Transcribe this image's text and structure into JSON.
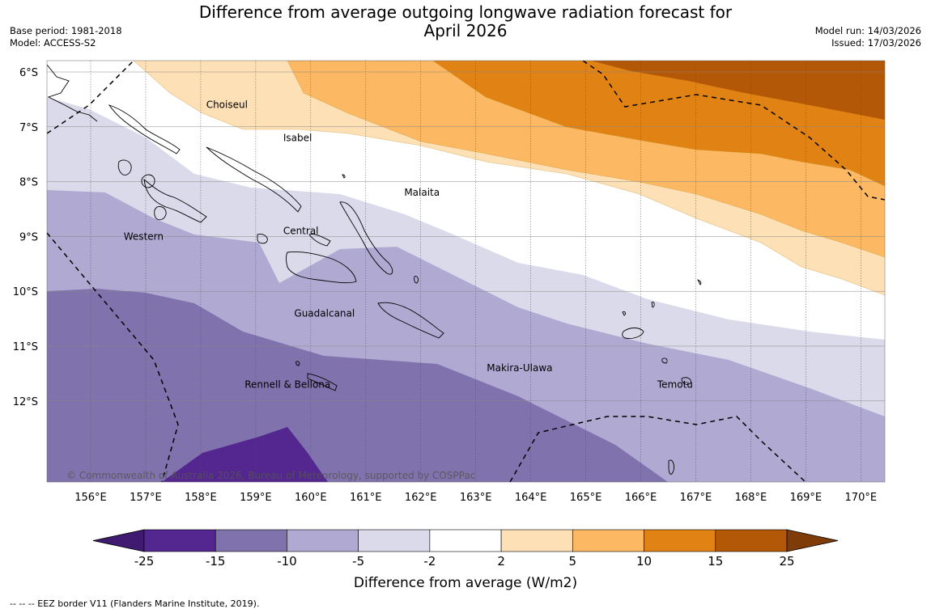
{
  "header": {
    "title_line1": "Difference from average outgoing longwave radiation forecast for",
    "title_line2": "April 2026",
    "base_period": "Base period: 1981-2018",
    "model": "Model: ACCESS-S2",
    "model_run": "Model run: 14/03/2026",
    "issued": "Issued: 17/03/2026"
  },
  "map": {
    "lon_labels": [
      "156°E",
      "157°E",
      "158°E",
      "159°E",
      "160°E",
      "161°E",
      "162°E",
      "163°E",
      "164°E",
      "165°E",
      "166°E",
      "167°E",
      "168°E",
      "169°E",
      "170°E"
    ],
    "lat_labels": [
      "6°S",
      "7°S",
      "8°S",
      "9°S",
      "10°S",
      "11°S",
      "12°S"
    ],
    "regions": [
      {
        "name": "Choiseul",
        "lon": 158.1,
        "lat": -6.6
      },
      {
        "name": "Isabel",
        "lon": 159.5,
        "lat": -7.2
      },
      {
        "name": "Malaita",
        "lon": 161.7,
        "lat": -8.2
      },
      {
        "name": "Western",
        "lon": 156.6,
        "lat": -9.0
      },
      {
        "name": "Central",
        "lon": 159.5,
        "lat": -8.9
      },
      {
        "name": "Guadalcanal",
        "lon": 159.7,
        "lat": -10.4
      },
      {
        "name": "Makira-Ulawa",
        "lon": 163.2,
        "lat": -11.4
      },
      {
        "name": "Rennell & Bellona",
        "lon": 158.8,
        "lat": -11.7
      },
      {
        "name": "Temotu",
        "lon": 166.3,
        "lat": -11.7
      }
    ],
    "copyright": "© Commonwealth of Australia 2026, Bureau of Meteorology, supported by COSPPac"
  },
  "colorbar": {
    "colors": [
      "#3f1a70",
      "#54268f",
      "#8072ac",
      "#b0aad3",
      "#dadaeb",
      "#ffffff",
      "#fee0b6",
      "#fdb863",
      "#e08214",
      "#b35806",
      "#7f3b08"
    ],
    "tick_labels": [
      "-25",
      "-15",
      "-10",
      "-5",
      "-2",
      "2",
      "5",
      "10",
      "15",
      "25"
    ],
    "title": "Difference from average (W/m2)"
  },
  "footnote": "--  --  -- EEZ border V11 (Flanders Marine Institute, 2019)."
}
